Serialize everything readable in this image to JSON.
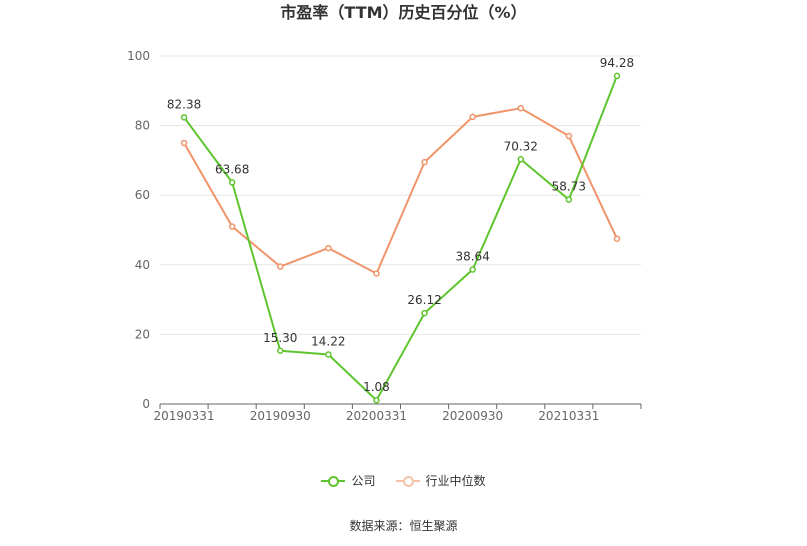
{
  "chart_data": {
    "type": "line",
    "title": "市盈率（TTM）历史百分位（%）",
    "x": [
      "20190331",
      "20190630",
      "20190930",
      "20191231",
      "20200331",
      "20200630",
      "20200930",
      "20201231",
      "20210331",
      "20210630"
    ],
    "x_tick_labels": [
      "20190331",
      "20190930",
      "20200331",
      "20200930",
      "20210331"
    ],
    "ylim": [
      0,
      100
    ],
    "y_ticks": [
      0,
      20,
      40,
      60,
      80,
      100
    ],
    "grid": true,
    "legend": "bottom",
    "series": [
      {
        "name": "公司",
        "color": "#5ec52e",
        "values": [
          82.38,
          63.68,
          15.3,
          14.22,
          1.08,
          26.12,
          38.64,
          70.32,
          58.73,
          94.28
        ],
        "labels": [
          "82.38",
          "63.68",
          "15.30",
          "14.22",
          "1.08",
          "26.12",
          "38.64",
          "70.32",
          "58.73",
          "94.28"
        ]
      },
      {
        "name": "行业中位数",
        "color": "#f0946a",
        "values": [
          75.0,
          51.0,
          39.5,
          44.8,
          37.5,
          69.5,
          82.5,
          85.0,
          77.0,
          47.5
        ]
      }
    ],
    "source": "数据来源：恒生聚源"
  }
}
